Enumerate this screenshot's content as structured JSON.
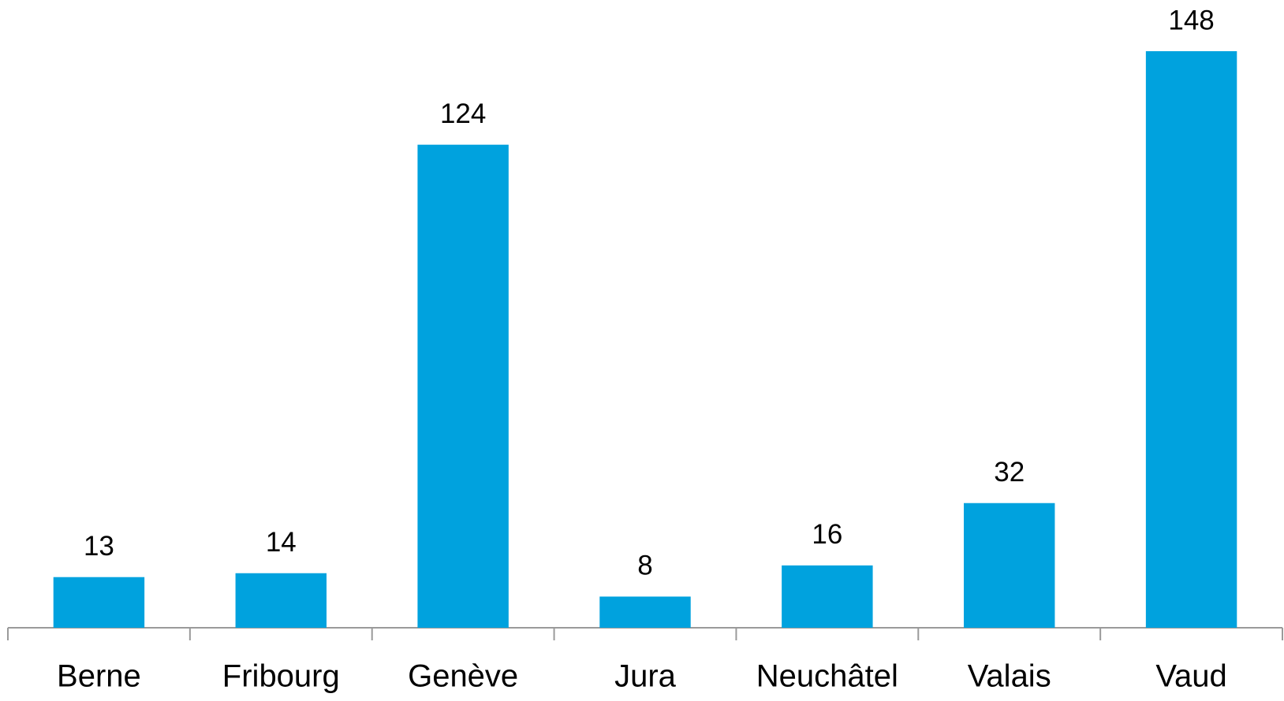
{
  "chart_data": {
    "type": "bar",
    "categories": [
      "Berne",
      "Fribourg",
      "Genève",
      "Jura",
      "Neuchâtel",
      "Valais",
      "Vaud"
    ],
    "values": [
      13,
      14,
      124,
      8,
      16,
      32,
      148
    ],
    "color": "#00a2de",
    "grid": false
  }
}
